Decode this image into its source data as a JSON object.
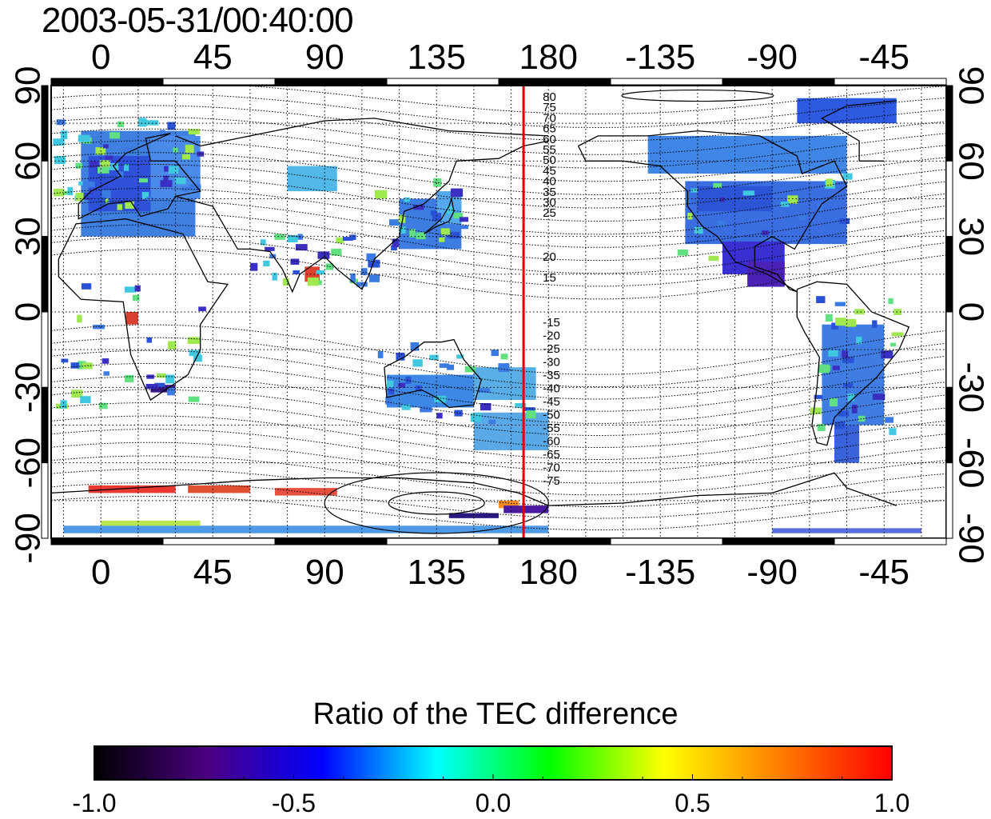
{
  "title": "2003-05-31/00:40:00",
  "x_ticks": [
    "0",
    "45",
    "90",
    "135",
    "180",
    "-135",
    "-90",
    "-45"
  ],
  "y_ticks": [
    "90",
    "60",
    "30",
    "0",
    "-30",
    "-60",
    "-90"
  ],
  "contour_labels_north": [
    "80",
    "75",
    "70",
    "65",
    "60",
    "55",
    "50",
    "45",
    "40",
    "35",
    "30",
    "25",
    "20",
    "15"
  ],
  "contour_labels_south": [
    "-15",
    "-20",
    "-25",
    "-30",
    "-35",
    "-40",
    "-45",
    "-50",
    "-55",
    "-60",
    "-65",
    "-70",
    "-75"
  ],
  "terminator_longitude": 170,
  "colorbar": {
    "title": "Ratio of the TEC difference",
    "min": -1.0,
    "max": 1.0,
    "tick_labels": [
      "-1.0",
      "-0.5",
      "0.0",
      "0.5",
      "1.0"
    ],
    "colors": [
      "#000000",
      "#4b0082",
      "#0000ff",
      "#00ffff",
      "#00ff00",
      "#ffff00",
      "#ff8000",
      "#ff0000"
    ]
  },
  "colors": {
    "terminator": "#e00000",
    "frame": "#000000"
  }
}
